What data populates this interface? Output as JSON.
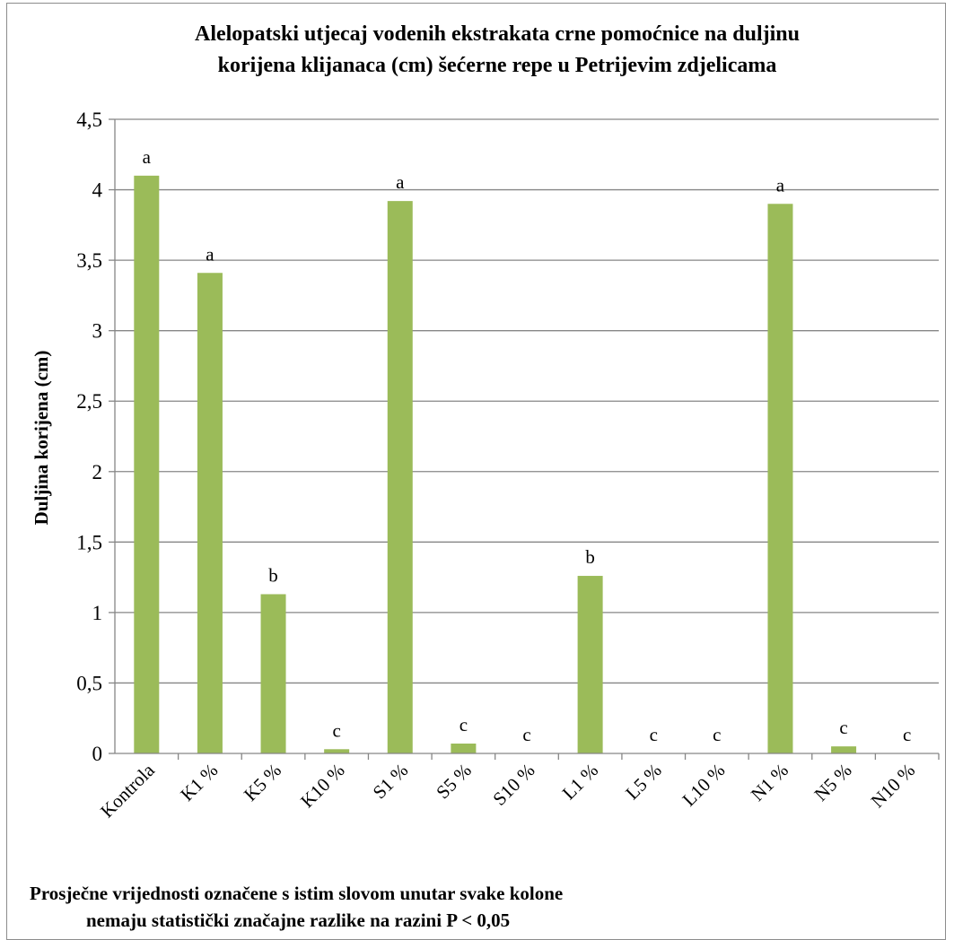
{
  "chart_data": {
    "type": "bar",
    "title_lines": [
      "Alelopatski utjecaj vodenih ekstrakata crne pomoćnice na duljinu",
      "korijena klijanaca (cm) šećerne repe u Petrijevim zdjelicama"
    ],
    "ylabel": "Duljina korijena (cm)",
    "xlabel": "",
    "ylim": [
      0,
      4.5
    ],
    "yticks": [
      "0",
      "0,5",
      "1",
      "1,5",
      "2",
      "2,5",
      "3",
      "3,5",
      "4",
      "4,5"
    ],
    "categories": [
      "Kontrola",
      "K1 %",
      "K5 %",
      "K10 %",
      "S1 %",
      "S5 %",
      "S10 %",
      "L1 %",
      "L5 %",
      "L10 %",
      "N1 %",
      "N5 %",
      "N10 %"
    ],
    "values": [
      4.1,
      3.41,
      1.13,
      0.03,
      3.92,
      0.07,
      0,
      1.26,
      0,
      0,
      3.9,
      0.05,
      0
    ],
    "data_labels": [
      "a",
      "a",
      "b",
      "c",
      "a",
      "c",
      "c",
      "b",
      "c",
      "c",
      "a",
      "c",
      "c"
    ],
    "bar_color": "#9bbb59",
    "grid": true,
    "legend": "none",
    "footnote_lines": [
      "Prosječne vrijednosti označene s istim slovom unutar svake kolone",
      "nemaju statistički značajne razlike na razini P < 0,05"
    ]
  }
}
